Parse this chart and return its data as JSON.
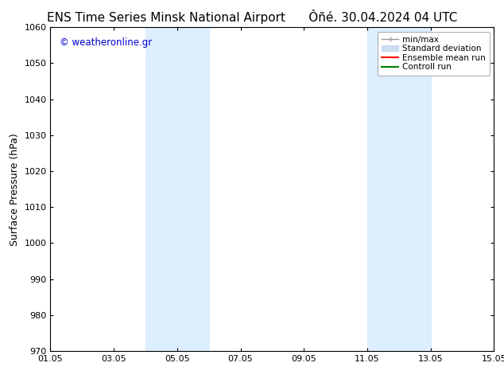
{
  "title_left": "ENS Time Series Minsk National Airport",
  "title_right": "Ôñé. 30.04.2024 04 UTC",
  "ylabel": "Surface Pressure (hPa)",
  "ylim": [
    970,
    1060
  ],
  "ytick_interval": 10,
  "x_start": 1.05,
  "x_end": 15.05,
  "xtick_labels": [
    "01.05",
    "03.05",
    "05.05",
    "07.05",
    "09.05",
    "11.05",
    "13.05",
    "15.05"
  ],
  "xtick_positions": [
    1.05,
    3.05,
    5.05,
    7.05,
    9.05,
    11.05,
    13.05,
    15.05
  ],
  "shaded_bands": [
    {
      "x_start": 4.05,
      "x_end": 6.05,
      "color": "#ddeeff"
    },
    {
      "x_start": 11.05,
      "x_end": 13.05,
      "color": "#ddeeff"
    }
  ],
  "watermark_text": "© weatheronline.gr",
  "watermark_color": "#0000cc",
  "background_color": "#ffffff",
  "legend_items": [
    {
      "label": "min/max",
      "color": "#aaaaaa",
      "lw": 1.0,
      "style": "solid"
    },
    {
      "label": "Standard deviation",
      "color": "#ccddf0",
      "lw": 6,
      "style": "solid"
    },
    {
      "label": "Ensemble mean run",
      "color": "#ff0000",
      "lw": 1.5,
      "style": "solid"
    },
    {
      "label": "Controll run",
      "color": "#008000",
      "lw": 1.5,
      "style": "solid"
    }
  ],
  "title_fontsize": 11,
  "axis_label_fontsize": 9,
  "tick_fontsize": 8,
  "legend_fontsize": 7.5
}
